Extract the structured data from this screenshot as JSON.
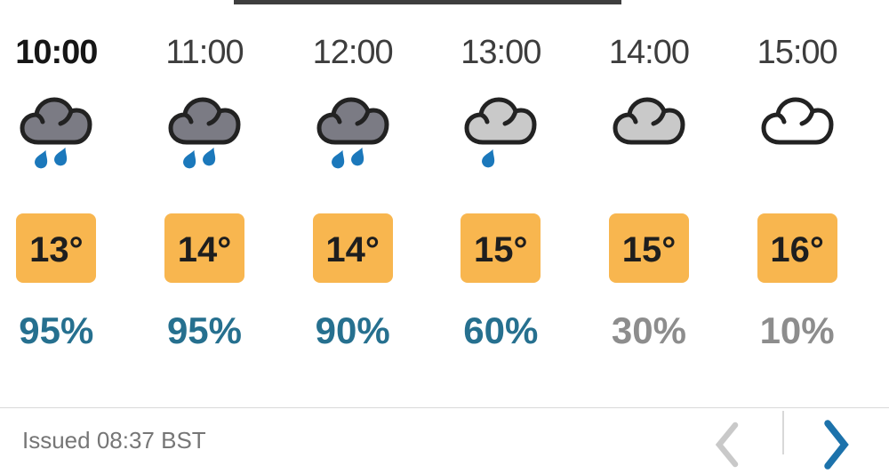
{
  "widget": {
    "kind": "hourly-weather-forecast"
  },
  "hours": [
    {
      "time": "10:00",
      "active": true,
      "icon": "rain-heavy-icon",
      "condition": "heavy rain",
      "temp": "13°",
      "precip": "95%",
      "precip_emphasis": true
    },
    {
      "time": "11:00",
      "active": false,
      "icon": "rain-heavy-icon",
      "condition": "heavy rain",
      "temp": "14°",
      "precip": "95%",
      "precip_emphasis": true
    },
    {
      "time": "12:00",
      "active": false,
      "icon": "rain-heavy-icon",
      "condition": "heavy rain",
      "temp": "14°",
      "precip": "90%",
      "precip_emphasis": true
    },
    {
      "time": "13:00",
      "active": false,
      "icon": "rain-light-icon",
      "condition": "light rain",
      "temp": "15°",
      "precip": "60%",
      "precip_emphasis": true
    },
    {
      "time": "14:00",
      "active": false,
      "icon": "cloud-grey-icon",
      "condition": "grey cloud",
      "temp": "15°",
      "precip": "30%",
      "precip_emphasis": false
    },
    {
      "time": "15:00",
      "active": false,
      "icon": "cloud-white-icon",
      "condition": "white cloud",
      "temp": "16°",
      "precip": "10%",
      "precip_emphasis": false
    }
  ],
  "footer": {
    "issued_label": "Issued 08:37 BST"
  },
  "nav": {
    "prev": {
      "icon": "chevron-left-icon",
      "enabled": false
    },
    "next": {
      "icon": "chevron-right-icon",
      "enabled": true
    }
  },
  "colors": {
    "top_bar": "#3e3e3e",
    "temp_box": "#f8b64f",
    "temp_text": "#1e1e1e",
    "precip_teal": "#26708f",
    "precip_grey": "#8d8d8d",
    "rain_drop": "#1b78bb",
    "cloud_dark_fill": "#7b7b84",
    "cloud_light_fill": "#c9c9c9",
    "cloud_white_fill": "#ffffff",
    "cloud_outline": "#222222",
    "chevron_enabled": "#1c72ab",
    "chevron_disabled": "#c9c9c9"
  }
}
